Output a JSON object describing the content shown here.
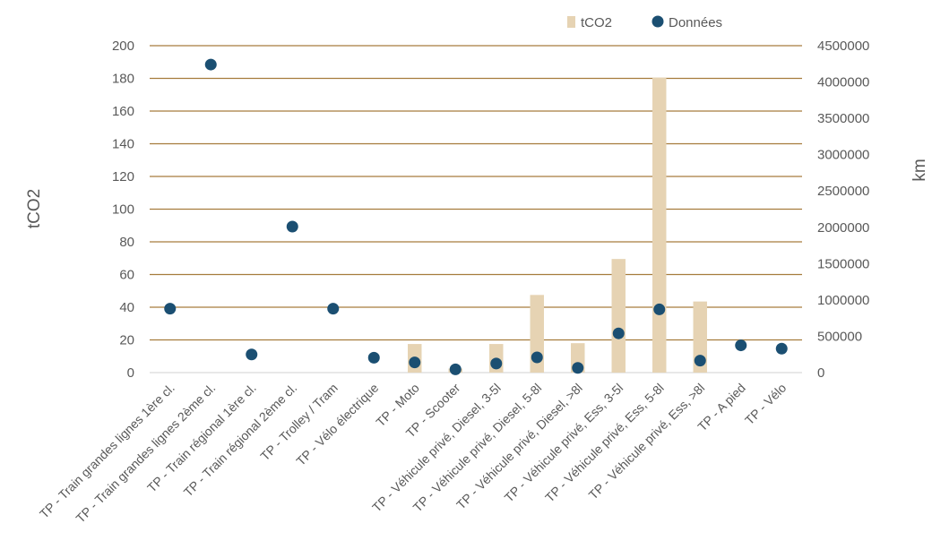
{
  "chart_data": {
    "type": "bar",
    "categories": [
      "TP - Train grandes lignes 1ère cl.",
      "TP - Train grandes lignes 2ème cl.",
      "TP - Train régional 1ère cl.",
      "TP - Train régional 2ème cl.",
      "TP - Trolley / Tram",
      "TP - Vélo électrique",
      "TP - Moto",
      "TP - Scooter",
      "TP - Véhicule privé, Diesel, 3-5l",
      "TP - Véhicule privé, Diesel, 5-8l",
      "TP - Véhicule privé, Diesel, >8l",
      "TP - Véhicule privé, Ess, 3-5l",
      "TP - Véhicule privé, Ess, 5-8l",
      "TP - Véhicule privé, Ess, >8l",
      "TP - A pied",
      "TP - Vélo"
    ],
    "series": [
      {
        "name": "tCO2",
        "type": "bar",
        "axis": "left",
        "color": "#E6D3B3",
        "values": [
          0,
          0,
          0,
          0,
          0,
          0,
          17.5,
          2.5,
          17.5,
          47.5,
          18,
          69.5,
          180.5,
          43.5,
          0,
          0
        ]
      },
      {
        "name": "Données",
        "type": "scatter",
        "axis": "right",
        "color": "#1B4F72",
        "values": [
          880000,
          4240000,
          250000,
          2010000,
          880000,
          205000,
          140000,
          45000,
          125000,
          210000,
          65000,
          540000,
          870000,
          165000,
          375000,
          330000
        ]
      }
    ],
    "ylabel": "tCO2",
    "y2label": "km",
    "ylim": [
      0,
      200
    ],
    "yticks": [
      "0",
      "20",
      "40",
      "60",
      "80",
      "100",
      "120",
      "140",
      "160",
      "180",
      "200"
    ],
    "y2lim": [
      0,
      4500000
    ],
    "y2ticks": [
      "0",
      "500000",
      "1000000",
      "1500000",
      "2000000",
      "2500000",
      "3000000",
      "3500000",
      "4000000",
      "4500000"
    ],
    "grid": true,
    "legend": "top-right"
  }
}
